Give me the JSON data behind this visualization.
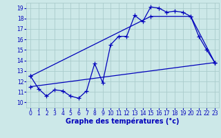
{
  "title": "Graphe des températures (°c)",
  "bg_color": "#cce8e8",
  "grid_color": "#aacccc",
  "line_color": "#0000bb",
  "xlim": [
    -0.5,
    23.5
  ],
  "ylim": [
    9.5,
    19.5
  ],
  "xticks": [
    0,
    1,
    2,
    3,
    4,
    5,
    6,
    7,
    8,
    9,
    10,
    11,
    12,
    13,
    14,
    15,
    16,
    17,
    18,
    19,
    20,
    21,
    22,
    23
  ],
  "yticks": [
    10,
    11,
    12,
    13,
    14,
    15,
    16,
    17,
    18,
    19
  ],
  "line1_x": [
    0,
    1,
    2,
    3,
    4,
    5,
    6,
    7,
    8,
    9,
    10,
    11,
    12,
    13,
    14,
    15,
    16,
    17,
    18,
    19,
    20,
    21,
    22,
    23
  ],
  "line1_y": [
    12.5,
    11.3,
    10.6,
    11.2,
    11.1,
    10.6,
    10.4,
    11.1,
    13.7,
    11.9,
    15.5,
    16.3,
    16.3,
    18.3,
    17.7,
    19.1,
    19.0,
    18.6,
    18.7,
    18.6,
    18.2,
    16.3,
    15.0,
    13.8
  ],
  "line2_x": [
    0,
    23
  ],
  "line2_y": [
    11.5,
    13.8
  ],
  "line3_x": [
    0,
    15,
    20,
    23
  ],
  "line3_y": [
    12.5,
    18.2,
    18.2,
    13.8
  ],
  "xlabel_fontsize": 7,
  "tick_fontsize": 5.5
}
